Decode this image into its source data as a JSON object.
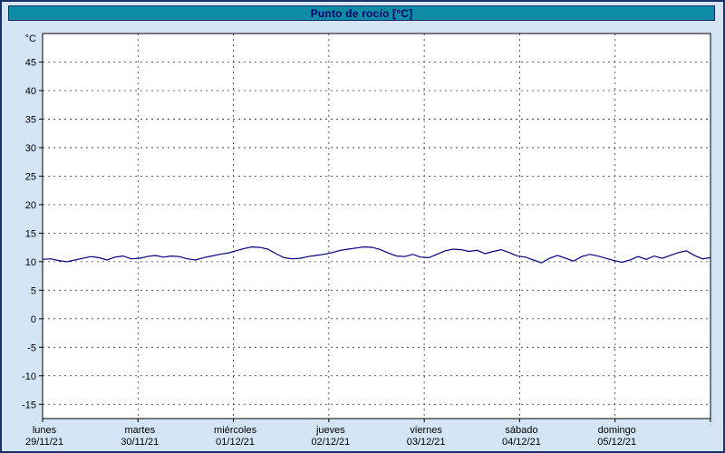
{
  "header": {
    "title": "Punto de rocío [°C]"
  },
  "colors": {
    "title_bar": "#0e8ca4",
    "title_text": "#00006b",
    "page_background": "#d3e5f4",
    "page_border": "#16346b",
    "plot_background": "#ffffff",
    "grid": "#333333",
    "axis_text": "#000000",
    "line": "#000080"
  },
  "chart_data": {
    "type": "line",
    "title": "Punto de rocío [°C]",
    "xlabel": "",
    "ylabel": "°C",
    "ylim": [
      -17.5,
      50
    ],
    "yticks": [
      45,
      40,
      35,
      30,
      25,
      20,
      15,
      10,
      5,
      0,
      -5,
      -10,
      -15
    ],
    "grid": true,
    "legend": "none",
    "x_resolution_hours": 2,
    "x_days": [
      {
        "name": "lunes",
        "date": "29/11/21"
      },
      {
        "name": "martes",
        "date": "30/11/21"
      },
      {
        "name": "miércoles",
        "date": "01/12/21"
      },
      {
        "name": "jueves",
        "date": "02/12/21"
      },
      {
        "name": "viernes",
        "date": "03/12/21"
      },
      {
        "name": "sábado",
        "date": "04/12/21"
      },
      {
        "name": "domingo",
        "date": "05/12/21"
      }
    ],
    "series": [
      {
        "name": "Punto de rocío",
        "color": "#000080",
        "values": [
          10.4,
          10.5,
          10.2,
          10.0,
          10.3,
          10.6,
          10.9,
          10.7,
          10.3,
          10.8,
          11.0,
          10.5,
          10.6,
          10.9,
          11.1,
          10.8,
          11.0,
          10.9,
          10.5,
          10.3,
          10.7,
          11.0,
          11.3,
          11.5,
          11.9,
          12.3,
          12.6,
          12.5,
          12.2,
          11.4,
          10.7,
          10.5,
          10.6,
          10.9,
          11.1,
          11.3,
          11.6,
          12.0,
          12.2,
          12.4,
          12.6,
          12.5,
          12.1,
          11.5,
          11.0,
          10.9,
          11.3,
          10.8,
          10.7,
          11.3,
          11.9,
          12.2,
          12.1,
          11.8,
          12.0,
          11.4,
          11.8,
          12.1,
          11.6,
          11.0,
          10.8,
          10.3,
          9.8,
          10.6,
          11.1,
          10.6,
          10.1,
          10.9,
          11.3,
          11.0,
          10.6,
          10.2,
          9.9,
          10.3,
          10.9,
          10.4,
          11.0,
          10.6,
          11.1,
          11.6,
          11.9,
          11.1,
          10.5,
          10.7
        ]
      }
    ]
  }
}
